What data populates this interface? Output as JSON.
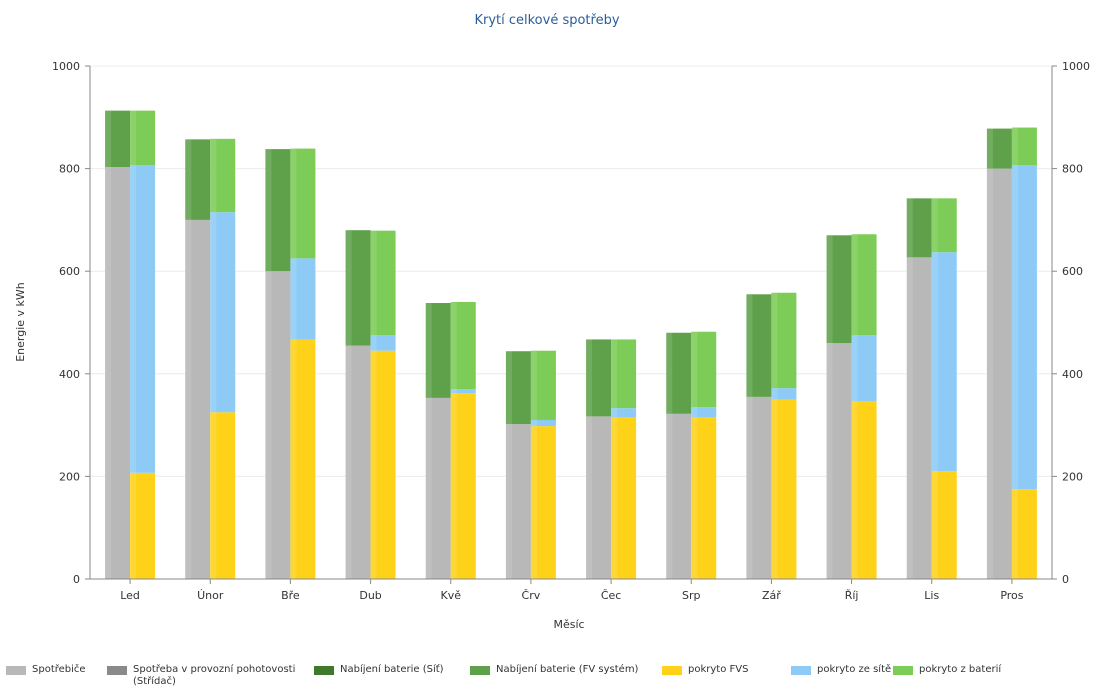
{
  "chart_data": {
    "type": "bar",
    "title": "Krytí celkové spotřeby",
    "xlabel": "Měsíc",
    "ylabel": "Energie v kWh",
    "ylim": [
      0,
      1000
    ],
    "yticks": [
      0,
      200,
      400,
      600,
      800,
      1000
    ],
    "grid": true,
    "legend_position": "bottom",
    "categories": [
      "Led",
      "Únor",
      "Bře",
      "Dub",
      "Kvě",
      "Črv",
      "Čec",
      "Srp",
      "Zář",
      "Říj",
      "Lis",
      "Pros"
    ],
    "stacks": [
      {
        "stack": "consumption",
        "series": [
          {
            "name": "Spotřebiče",
            "color": "#b8b8b8",
            "values": [
              803,
              700,
              600,
              455,
              353,
              302,
              317,
              322,
              355,
              460,
              627,
              800
            ]
          },
          {
            "name": "Spotřeba v provozní pohotovosti\n(Střídač)",
            "color": "#8a8a8a",
            "values": [
              0,
              0,
              0,
              0,
              0,
              0,
              0,
              0,
              0,
              0,
              0,
              0
            ]
          },
          {
            "name": "Nabíjení baterie (Síť)",
            "color": "#3f7a2c",
            "values": [
              0,
              0,
              0,
              0,
              0,
              0,
              0,
              0,
              0,
              0,
              0,
              0
            ]
          },
          {
            "name": "Nabíjení baterie (FV systém)",
            "color": "#5fa14a",
            "values": [
              110,
              157,
              238,
              225,
              185,
              142,
              150,
              158,
              200,
              210,
              115,
              78
            ]
          }
        ]
      },
      {
        "stack": "coverage",
        "series": [
          {
            "name": "pokryto FVS",
            "color": "#ffd21a",
            "values": [
              207,
              325,
              467,
              445,
              362,
              298,
              315,
              315,
              350,
              347,
              210,
              175
            ]
          },
          {
            "name": "pokryto ze sítě",
            "color": "#8dcbf6",
            "values": [
              600,
              390,
              158,
              30,
              8,
              12,
              18,
              20,
              22,
              128,
              427,
              632
            ]
          },
          {
            "name": "pokryto z baterií",
            "color": "#7ccc57",
            "values": [
              106,
              143,
              214,
              204,
              170,
              135,
              134,
              147,
              186,
              197,
              105,
              73
            ]
          }
        ]
      }
    ]
  },
  "legend": [
    {
      "label": "Spotřebiče",
      "color": "#b8b8b8"
    },
    {
      "label": "Spotřeba v provozní pohotovosti\n(Střídač)",
      "color": "#8a8a8a"
    },
    {
      "label": "Nabíjení baterie (Síť)",
      "color": "#3f7a2c"
    },
    {
      "label": "Nabíjení baterie (FV systém)",
      "color": "#5fa14a"
    },
    {
      "label": "pokryto FVS",
      "color": "#ffd21a"
    },
    {
      "label": "pokryto ze sítě",
      "color": "#8dcbf6"
    },
    {
      "label": "pokryto z baterií",
      "color": "#7ccc57"
    }
  ]
}
